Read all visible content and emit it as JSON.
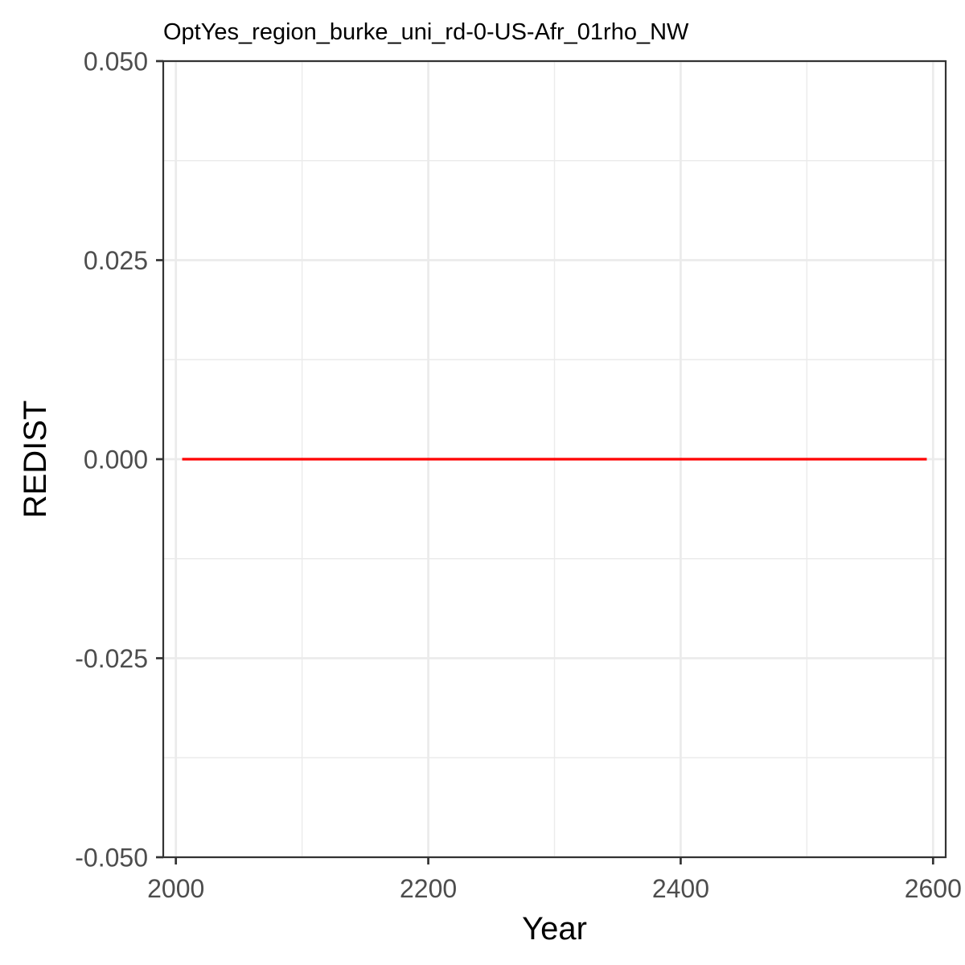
{
  "chart_data": {
    "type": "line",
    "title": "OptYes_region_burke_uni_rd-0-US-Afr_01rho_NW",
    "xlabel": "Year",
    "ylabel": "REDIST",
    "xlim": [
      1990,
      2610
    ],
    "ylim": [
      -0.05,
      0.05
    ],
    "x_ticks": [
      2000,
      2200,
      2400,
      2600
    ],
    "x_tick_labels": [
      "2000",
      "2200",
      "2400",
      "2600"
    ],
    "x_minor_ticks": [
      2100,
      2300,
      2500
    ],
    "y_ticks": [
      -0.05,
      -0.025,
      0,
      0.025,
      0.05
    ],
    "y_tick_labels": [
      "-0.050",
      "-0.025",
      "0.000",
      "0.025",
      "0.050"
    ],
    "y_minor_ticks": [
      -0.0375,
      -0.0125,
      0.0125,
      0.0375
    ],
    "grid": true,
    "series": [
      {
        "color": "#ff0000",
        "x": [
          2005,
          2595
        ],
        "y": [
          0,
          0
        ]
      }
    ]
  }
}
